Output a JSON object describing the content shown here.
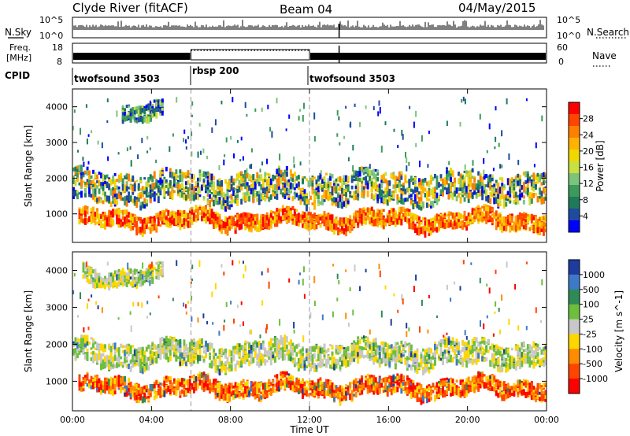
{
  "header": {
    "station": "Clyde River (fitACF)",
    "beam": "Beam 04",
    "date": "04/May/2015"
  },
  "strips": {
    "nsky_label": "N.Sky",
    "nsearch_label": "N.Search",
    "nsky_ticks": [
      "10^5",
      "10^0"
    ],
    "freq_label_1": "Freq.",
    "freq_label_2": "[MHz]",
    "freq_ticks": [
      "18",
      "8"
    ],
    "nave_label": "Nave",
    "nave_ticks": [
      "60",
      "0"
    ],
    "cpid_label": "CPID",
    "cpid_segments": [
      {
        "name": "twofsound 3503",
        "start_hour": 0,
        "end_hour": 6
      },
      {
        "name": "rbsp 200",
        "start_hour": 6,
        "end_hour": 12
      },
      {
        "name": "twofsound 3503",
        "start_hour": 12,
        "end_hour": 24
      }
    ]
  },
  "chart_data": [
    {
      "type": "heatmap",
      "title": "Power",
      "ylabel": "Slant Range [km]",
      "xlabel": "",
      "ylim": [
        200,
        4500
      ],
      "xlim": [
        0,
        24
      ],
      "yticks": [
        "1000",
        "2000",
        "3000",
        "4000"
      ],
      "colorbar_label": "Power [dB]",
      "colorbar_ticks": [
        "28",
        "24",
        "20",
        "16",
        "12",
        "8",
        "4"
      ],
      "colorbar_colors": [
        "#ff0000",
        "#ff4500",
        "#ff7f00",
        "#ffb300",
        "#f0d800",
        "#c8e040",
        "#7cc47a",
        "#3c9a5a",
        "#1e7a5a",
        "#1e4aa0",
        "#0000ff"
      ],
      "bands": [
        {
          "range_km": [
            700,
            1100
          ],
          "x_hours": [
            0.3,
            24
          ],
          "level": "high"
        },
        {
          "range_km": [
            1400,
            2200
          ],
          "x_hours": [
            0,
            24
          ],
          "level": "mid"
        },
        {
          "range_km": [
            3700,
            4100
          ],
          "x_hours": [
            2.5,
            4.5
          ],
          "level": "low"
        }
      ]
    },
    {
      "type": "heatmap",
      "title": "Velocity",
      "ylabel": "Slant Range [km]",
      "xlabel": "Time UT",
      "ylim": [
        200,
        4500
      ],
      "xlim": [
        0,
        24
      ],
      "yticks": [
        "1000",
        "2000",
        "3000",
        "4000"
      ],
      "xticks": [
        "00:00",
        "04:00",
        "08:00",
        "12:00",
        "16:00",
        "20:00",
        "00:00"
      ],
      "colorbar_label": "Velocity [m s^-1]",
      "colorbar_ticks": [
        "1000",
        "500",
        "100",
        "25",
        "-25",
        "-100",
        "-500",
        "-1000"
      ],
      "colorbar_colors": [
        "#1e3ca0",
        "#3c7ac8",
        "#2e8b57",
        "#6cbf3c",
        "#c8c8c8",
        "#ffd700",
        "#ff8c00",
        "#ff4500",
        "#ff0000"
      ],
      "bands": [
        {
          "range_km": [
            700,
            1100
          ],
          "x_hours": [
            0.3,
            24
          ],
          "level": "negative"
        },
        {
          "range_km": [
            1500,
            2100
          ],
          "x_hours": [
            0,
            24
          ],
          "level": "near-zero"
        },
        {
          "range_km": [
            3700,
            4100
          ],
          "x_hours": [
            0.5,
            4.5
          ],
          "level": "near-zero"
        }
      ]
    }
  ]
}
